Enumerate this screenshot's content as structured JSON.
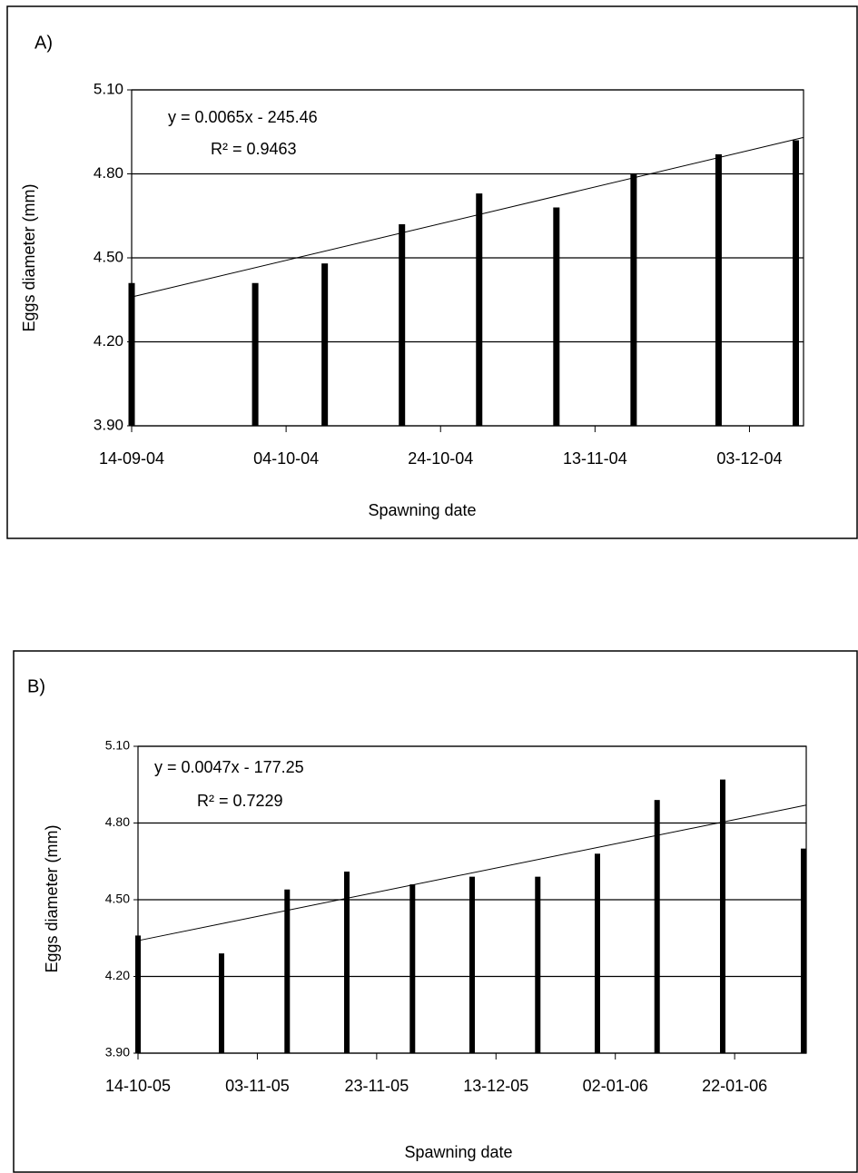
{
  "chart_data": [
    {
      "type": "bar",
      "panel_label": "A)",
      "equation": "y = 0.0065x - 245.46",
      "r_squared": "R² = 0.9463",
      "x_label": "Spawning date",
      "y_label": "Eggs diameter (mm)",
      "color": "#000000",
      "x": [
        "14-09-04",
        "30-09-04",
        "09-10-04",
        "19-10-04",
        "29-10-04",
        "08-11-04",
        "18-11-04",
        "29-11-04",
        "09-12-04"
      ],
      "values": [
        4.41,
        4.41,
        4.48,
        4.62,
        4.73,
        4.68,
        4.8,
        4.87,
        4.92
      ],
      "trendline": {
        "x": [
          "14-09-04",
          "10-12-04"
        ],
        "values": [
          4.36,
          4.93
        ]
      },
      "xlim": [
        "14-09-04",
        "10-12-04"
      ],
      "xticks": [
        "14-09-04",
        "04-10-04",
        "24-10-04",
        "13-11-04",
        "03-12-04"
      ],
      "ylim": [
        3.9,
        5.1
      ],
      "yticks": [
        {
          "value": 3.9,
          "label": "3.90"
        },
        {
          "value": 4.2,
          "label": "4.20"
        },
        {
          "value": 4.5,
          "label": "4.50"
        },
        {
          "value": 4.8,
          "label": "4.80"
        },
        {
          "value": 5.1,
          "label": "5.10"
        }
      ],
      "grid": true
    },
    {
      "type": "bar",
      "panel_label": "B)",
      "equation": "y = 0.0047x - 177.25",
      "r_squared": "R² = 0.7229",
      "x_label": "Spawning date",
      "y_label": "Eggs diameter (mm)",
      "color": "#000000",
      "x": [
        "14-10-05",
        "28-10-05",
        "08-11-05",
        "18-11-05",
        "29-11-05",
        "09-12-05",
        "20-12-05",
        "30-12-05",
        "09-01-06",
        "20-01-06",
        "03-02-06"
      ],
      "values": [
        4.36,
        4.29,
        4.54,
        4.61,
        4.56,
        4.59,
        4.59,
        4.68,
        4.89,
        4.97,
        4.7
      ],
      "trendline": {
        "x": [
          "14-10-05",
          "03-02-06"
        ],
        "values": [
          4.34,
          4.87
        ]
      },
      "xlim": [
        "14-10-05",
        "03-02-06"
      ],
      "xticks": [
        "14-10-05",
        "03-11-05",
        "23-11-05",
        "13-12-05",
        "02-01-06",
        "22-01-06"
      ],
      "ylim": [
        3.9,
        5.1
      ],
      "yticks": [
        {
          "value": 3.9,
          "label": "3.90"
        },
        {
          "value": 4.2,
          "label": "4.20"
        },
        {
          "value": 4.5,
          "label": "4.50"
        },
        {
          "value": 4.8,
          "label": "4.80"
        },
        {
          "value": 5.1,
          "label": "5.10"
        }
      ],
      "grid": true
    }
  ]
}
